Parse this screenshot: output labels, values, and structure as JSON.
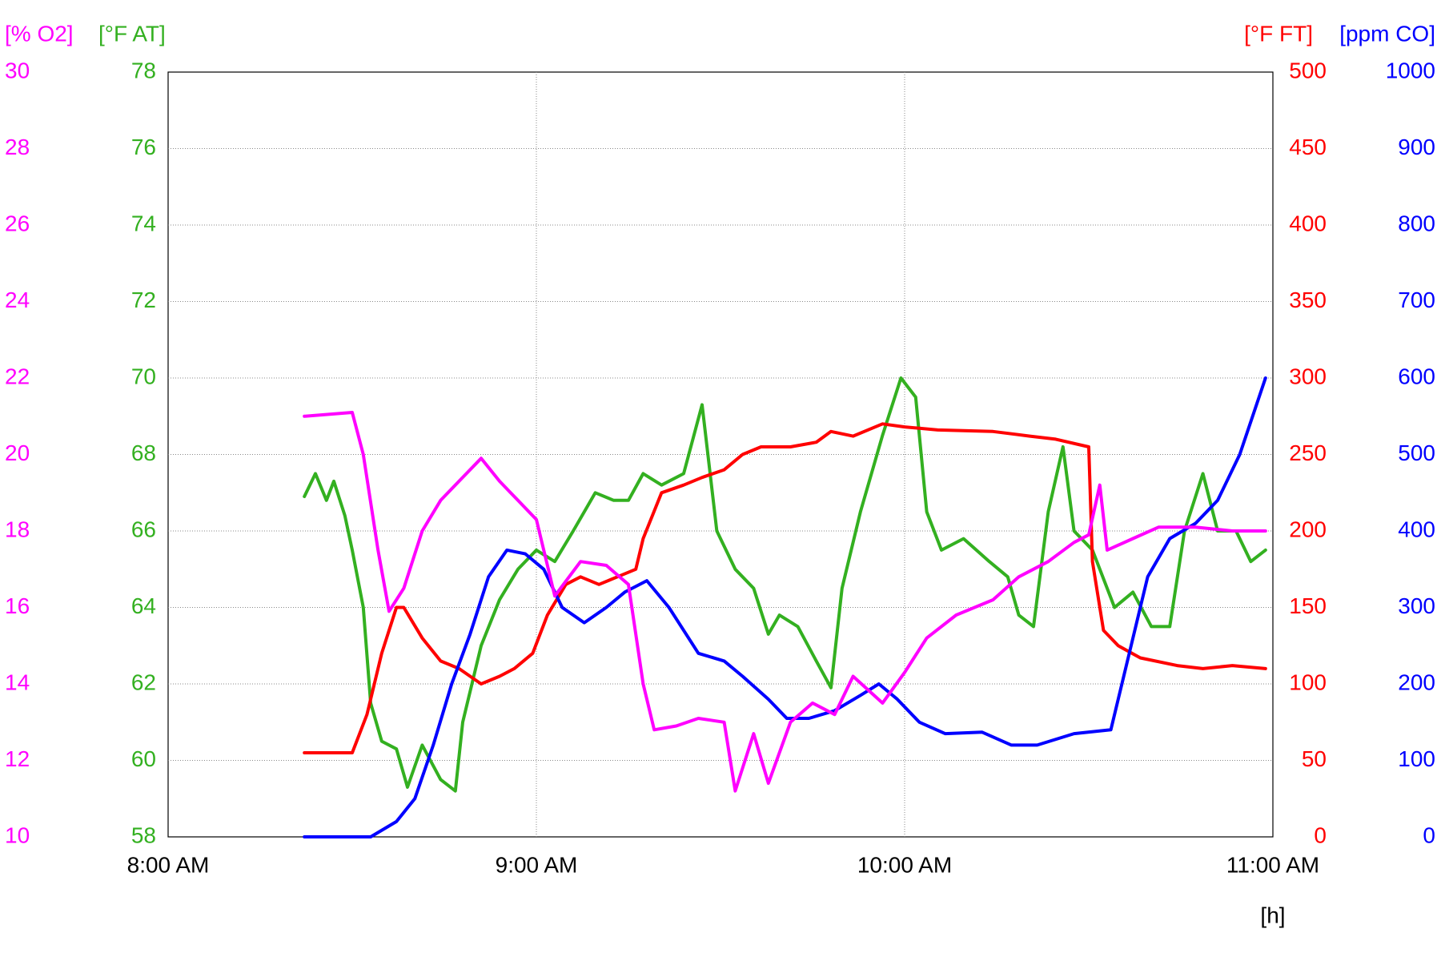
{
  "chart_data": {
    "type": "line",
    "x_label": "[h]",
    "xlim": [
      8,
      11
    ],
    "xticks": [
      {
        "value": 8,
        "label": "8:00 AM"
      },
      {
        "value": 9,
        "label": "9:00 AM"
      },
      {
        "value": 10,
        "label": "10:00 AM"
      },
      {
        "value": 11,
        "label": "11:00 AM"
      }
    ],
    "grid": true,
    "axes": [
      {
        "label": "[% O2]",
        "side": "left",
        "color": "#ff00ff",
        "lim": [
          10,
          30
        ],
        "ticks": [
          10,
          12,
          14,
          16,
          18,
          20,
          22,
          24,
          26,
          28,
          30
        ]
      },
      {
        "label": "[°F AT]",
        "side": "left",
        "color": "#33b020",
        "lim": [
          58,
          78
        ],
        "ticks": [
          58,
          60,
          62,
          64,
          66,
          68,
          70,
          72,
          74,
          76,
          78
        ]
      },
      {
        "label": "[°F FT]",
        "side": "right",
        "color": "#ff0000",
        "lim": [
          0,
          500
        ],
        "ticks": [
          0,
          50,
          100,
          150,
          200,
          250,
          300,
          350,
          400,
          450,
          500
        ]
      },
      {
        "label": "[ppm CO]",
        "side": "right",
        "color": "#0000ff",
        "lim": [
          0,
          1000
        ],
        "ticks": [
          0,
          100,
          200,
          300,
          400,
          500,
          600,
          700,
          800,
          900,
          1000
        ]
      }
    ],
    "series": [
      {
        "axis": 1,
        "color": "#33b020",
        "x": [
          8.37,
          8.4,
          8.43,
          8.45,
          8.48,
          8.5,
          8.53,
          8.55,
          8.58,
          8.62,
          8.65,
          8.69,
          8.74,
          8.78,
          8.8,
          8.85,
          8.9,
          8.95,
          9.0,
          9.05,
          9.1,
          9.16,
          9.21,
          9.25,
          9.29,
          9.34,
          9.4,
          9.45,
          9.49,
          9.54,
          9.59,
          9.63,
          9.66,
          9.71,
          9.76,
          9.8,
          9.83,
          9.88,
          9.94,
          9.99,
          10.03,
          10.06,
          10.1,
          10.16,
          10.23,
          10.28,
          10.31,
          10.35,
          10.39,
          10.43,
          10.46,
          10.51,
          10.57,
          10.62,
          10.67,
          10.72,
          10.76,
          10.81,
          10.85,
          10.9,
          10.94,
          10.98
        ],
        "values": [
          66.9,
          67.5,
          66.8,
          67.3,
          66.4,
          65.5,
          64.0,
          61.5,
          60.5,
          60.3,
          59.3,
          60.4,
          59.5,
          59.2,
          61.0,
          63.0,
          64.2,
          65.0,
          65.5,
          65.2,
          66.0,
          67.0,
          66.8,
          66.8,
          67.5,
          67.2,
          67.5,
          69.3,
          66.0,
          65.0,
          64.5,
          63.3,
          63.8,
          63.5,
          62.6,
          61.9,
          64.5,
          66.5,
          68.5,
          70.0,
          69.5,
          66.5,
          65.5,
          65.8,
          65.2,
          64.8,
          63.8,
          63.5,
          66.5,
          68.2,
          66.0,
          65.5,
          64.0,
          64.4,
          63.5,
          63.5,
          66.0,
          67.5,
          66.0,
          66.0,
          65.2,
          65.5
        ]
      },
      {
        "axis": 2,
        "color": "#ff0000",
        "x": [
          8.37,
          8.5,
          8.54,
          8.58,
          8.62,
          8.64,
          8.69,
          8.74,
          8.79,
          8.85,
          8.9,
          8.94,
          8.99,
          9.03,
          9.08,
          9.12,
          9.17,
          9.22,
          9.27,
          9.29,
          9.34,
          9.4,
          9.45,
          9.51,
          9.56,
          9.61,
          9.69,
          9.76,
          9.8,
          9.86,
          9.94,
          10.0,
          10.09,
          10.24,
          10.34,
          10.41,
          10.5,
          10.51,
          10.54,
          10.58,
          10.64,
          10.74,
          10.81,
          10.89,
          10.98
        ],
        "values": [
          55,
          55,
          80,
          120,
          150,
          150,
          130,
          115,
          110,
          100,
          105,
          110,
          120,
          145,
          165,
          170,
          165,
          170,
          175,
          195,
          225,
          230,
          235,
          240,
          250,
          255,
          255,
          258,
          265,
          262,
          270,
          268,
          266,
          265,
          262,
          260,
          255,
          180,
          135,
          125,
          117,
          112,
          110,
          112,
          110
        ]
      },
      {
        "axis": 3,
        "color": "#0000ff",
        "x": [
          8.37,
          8.55,
          8.62,
          8.67,
          8.72,
          8.77,
          8.82,
          8.87,
          8.92,
          8.97,
          9.02,
          9.07,
          9.13,
          9.19,
          9.24,
          9.3,
          9.36,
          9.44,
          9.51,
          9.56,
          9.63,
          9.68,
          9.74,
          9.81,
          9.88,
          9.93,
          9.98,
          10.04,
          10.11,
          10.21,
          10.29,
          10.36,
          10.46,
          10.56,
          10.61,
          10.66,
          10.72,
          10.79,
          10.85,
          10.91,
          10.98
        ],
        "values": [
          0,
          0,
          20,
          50,
          120,
          200,
          265,
          340,
          375,
          370,
          350,
          300,
          280,
          300,
          320,
          335,
          300,
          240,
          230,
          210,
          180,
          155,
          155,
          165,
          185,
          200,
          180,
          150,
          135,
          137,
          120,
          120,
          135,
          140,
          240,
          340,
          390,
          410,
          440,
          500,
          600
        ]
      },
      {
        "axis": 0,
        "color": "#ff00ff",
        "x": [
          8.37,
          8.5,
          8.53,
          8.57,
          8.6,
          8.64,
          8.69,
          8.74,
          8.79,
          8.85,
          8.9,
          8.95,
          9.0,
          9.05,
          9.12,
          9.19,
          9.25,
          9.29,
          9.32,
          9.38,
          9.44,
          9.51,
          9.54,
          9.59,
          9.63,
          9.69,
          9.75,
          9.81,
          9.86,
          9.94,
          10.0,
          10.06,
          10.14,
          10.24,
          10.31,
          10.39,
          10.46,
          10.5,
          10.53,
          10.55,
          10.62,
          10.69,
          10.79,
          10.89,
          10.98
        ],
        "values": [
          21.0,
          21.1,
          20.0,
          17.5,
          15.9,
          16.5,
          18.0,
          18.8,
          19.3,
          19.9,
          19.3,
          18.8,
          18.3,
          16.3,
          17.2,
          17.1,
          16.6,
          14.0,
          12.8,
          12.9,
          13.1,
          13.0,
          11.2,
          12.7,
          11.4,
          13.0,
          13.5,
          13.2,
          14.2,
          13.5,
          14.3,
          15.2,
          15.8,
          16.2,
          16.8,
          17.2,
          17.7,
          17.9,
          19.2,
          17.5,
          17.8,
          18.1,
          18.1,
          18.0,
          18.0
        ]
      }
    ]
  }
}
